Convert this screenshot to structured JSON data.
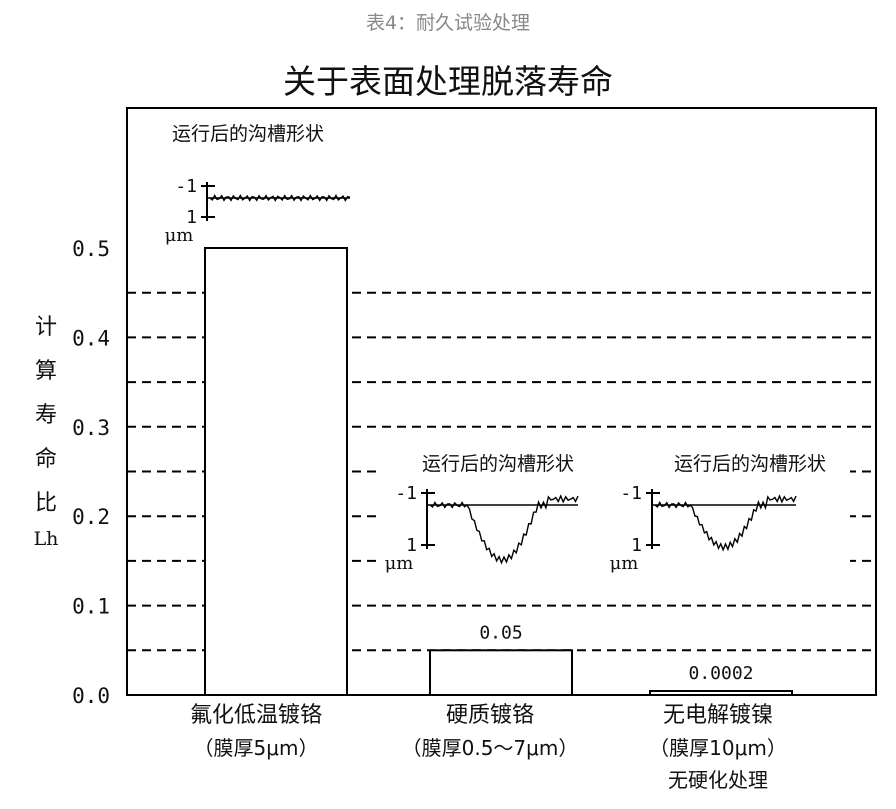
{
  "caption": "表4：耐久试验处理",
  "chart_data": {
    "type": "bar",
    "title": "关于表面处理脱落寿命",
    "ylabel": "计算寿命比",
    "ylabel_sub": "Lh",
    "ylim": [
      0,
      0.5
    ],
    "yticks": [
      0.0,
      0.1,
      0.2,
      0.3,
      0.4,
      0.5
    ],
    "yticks_labels": [
      "0.0",
      "0.1",
      "0.2",
      "0.3",
      "0.4",
      "0.5"
    ],
    "grid": "dashed",
    "categories": [
      {
        "name": "氟化低温镀铬",
        "detail": "（膜厚5μm）",
        "extra": ""
      },
      {
        "name": "硬质镀铬",
        "detail": "（膜厚0.5～7μm）",
        "extra": ""
      },
      {
        "name": "无电解镀镍",
        "detail": "（膜厚10μm）",
        "extra": "无硬化处理"
      }
    ],
    "values": [
      0.5,
      0.05,
      0.0002
    ],
    "data_labels": [
      "",
      "0.05",
      "0.0002"
    ]
  },
  "insets": [
    {
      "title": "运行后的沟槽形状",
      "tick_top": "-1",
      "tick_bottom": "1",
      "unit": "μm",
      "profile": "flat"
    },
    {
      "title": "运行后的沟槽形状",
      "tick_top": "-1",
      "tick_bottom": "1",
      "unit": "μm",
      "profile": "groove-deep"
    },
    {
      "title": "运行后的沟槽形状",
      "tick_top": "-1",
      "tick_bottom": "1",
      "unit": "μm",
      "profile": "groove"
    }
  ]
}
